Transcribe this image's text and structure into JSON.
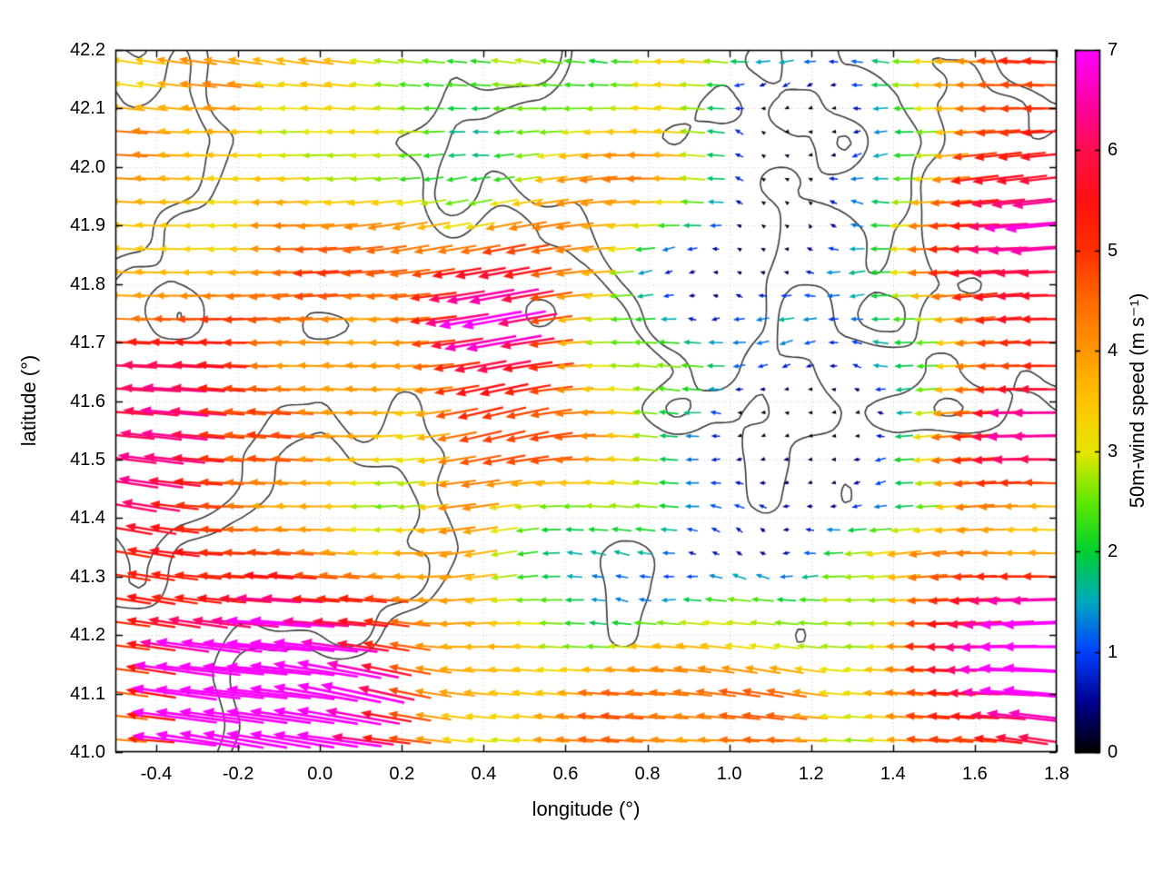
{
  "chart_data": {
    "type": "quiver",
    "title": "",
    "description": "50 m wind vector field over a lon/lat map region; arrows point predominantly westward (easterly flow), colored and scaled by wind speed 0-7 m/s; dark terrain contour lines underneath; faint dotted graticule grid.",
    "xlabel": "longitude (°)",
    "ylabel": "latitude (°)",
    "xlim": [
      -0.5,
      1.8
    ],
    "ylim": [
      41.0,
      42.2
    ],
    "grid": "dotted",
    "x_ticks": {
      "values": [
        -0.4,
        -0.2,
        0.0,
        0.2,
        0.4,
        0.6,
        0.8,
        1.0,
        1.2,
        1.4,
        1.6,
        1.8
      ],
      "labels": [
        "-0.4",
        "-0.2",
        "0.0",
        "0.2",
        "0.4",
        "0.6",
        "0.8",
        "1.0",
        "1.2",
        "1.4",
        "1.6",
        "1.8"
      ]
    },
    "y_ticks": {
      "values": [
        41.0,
        41.1,
        41.2,
        41.3,
        41.4,
        41.5,
        41.6,
        41.7,
        41.8,
        41.9,
        42.0,
        42.1,
        42.2
      ],
      "labels": [
        "41.0",
        "41.1",
        "41.2",
        "41.3",
        "41.4",
        "41.5",
        "41.6",
        "41.7",
        "41.8",
        "41.9",
        "42.0",
        "42.1",
        "42.2"
      ]
    },
    "colorbar": {
      "label": "50m-wind speed (m s⁻¹)",
      "min": 0,
      "max": 7,
      "ticks": {
        "values": [
          0,
          1,
          2,
          3,
          4,
          5,
          6,
          7
        ],
        "labels": [
          "0",
          "1",
          "2",
          "3",
          "4",
          "5",
          "6",
          "7"
        ]
      },
      "colormap": [
        [
          0.0,
          "#000000"
        ],
        [
          0.5,
          "#00008f"
        ],
        [
          1.0,
          "#0040ff"
        ],
        [
          1.5,
          "#00a8c0"
        ],
        [
          2.0,
          "#00d030"
        ],
        [
          2.5,
          "#60e800"
        ],
        [
          3.0,
          "#e6e600"
        ],
        [
          3.5,
          "#ffc400"
        ],
        [
          4.0,
          "#ff9800"
        ],
        [
          4.5,
          "#ff6a00"
        ],
        [
          5.0,
          "#ff3000"
        ],
        [
          5.5,
          "#ff1010"
        ],
        [
          6.0,
          "#ff0e4e"
        ],
        [
          6.5,
          "#ff00a8"
        ],
        [
          7.0,
          "#ff00ff"
        ]
      ]
    },
    "contours": {
      "seed": 11,
      "frequency": 2.3,
      "levels": [
        0.5,
        0.57
      ],
      "color": "#383838",
      "line_width": 1.6
    },
    "field": {
      "seed": 7,
      "grid_nx": 40,
      "grid_ny": 30,
      "base_speed": 3.9,
      "speed_noise_amp": 3.6,
      "speed_frequency": 2.2,
      "base_direction_deg": 180,
      "direction_jitter_deg": 20,
      "dir_frequency": 1.6,
      "slow_jitter_below": 2.2,
      "slow_jitter_deg": 85,
      "speed_bumps": [
        {
          "x": 1.05,
          "y": 42.08,
          "r": 0.3,
          "a": -3.0
        },
        {
          "x": 0.75,
          "y": 42.15,
          "r": 0.15,
          "a": -1.6
        },
        {
          "x": 1.1,
          "y": 41.52,
          "r": 0.34,
          "a": -2.6
        },
        {
          "x": 0.6,
          "y": 41.32,
          "r": 0.18,
          "a": -2.2
        },
        {
          "x": 0.85,
          "y": 41.27,
          "r": 0.16,
          "a": -2.4
        },
        {
          "x": 0.9,
          "y": 41.8,
          "r": 0.22,
          "a": -1.8
        },
        {
          "x": -0.15,
          "y": 41.08,
          "r": 0.35,
          "a": 2.8
        },
        {
          "x": -0.45,
          "y": 41.58,
          "r": 0.24,
          "a": 2.3
        },
        {
          "x": 0.42,
          "y": 41.72,
          "r": 0.2,
          "a": 2.4
        },
        {
          "x": 1.6,
          "y": 41.22,
          "r": 0.3,
          "a": 2.5
        },
        {
          "x": 1.7,
          "y": 41.55,
          "r": 0.25,
          "a": 1.9
        },
        {
          "x": 1.72,
          "y": 41.95,
          "r": 0.25,
          "a": 1.8
        },
        {
          "x": -0.3,
          "y": 41.45,
          "r": 0.22,
          "a": 1.7
        }
      ],
      "arrow_style": {
        "length_base": 3,
        "length_per_speed": 9.5,
        "length_extra_over6": 25,
        "head_base": 5,
        "head_per_speed": 1.1
      }
    }
  }
}
